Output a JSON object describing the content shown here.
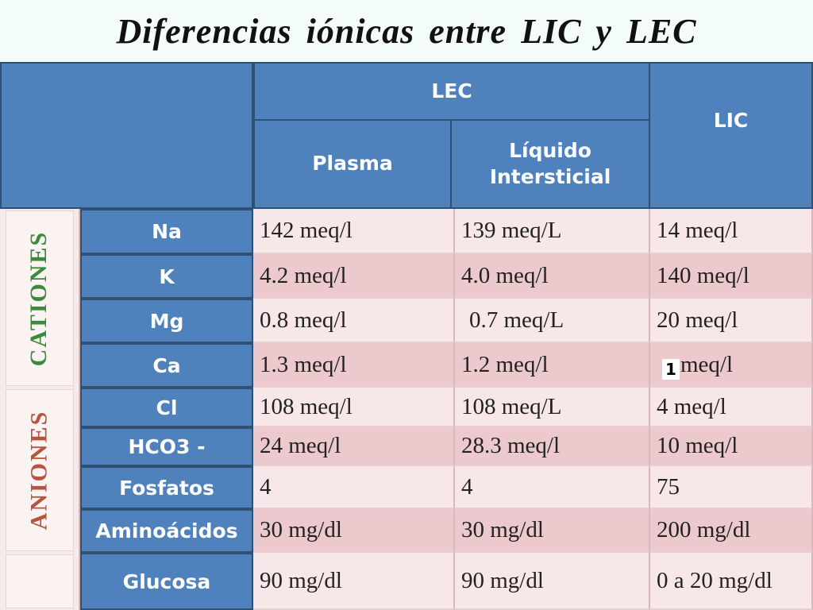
{
  "title": "Diferencias iónicas entre LIC y LEC",
  "headers": {
    "lec": "LEC",
    "plasma": "Plasma",
    "liquido": "Líquido Intersticial",
    "lic": "LIC"
  },
  "groups": {
    "cations": "CATIONES",
    "anions": "ANIONES"
  },
  "rows": [
    {
      "label": "Na",
      "plasma": "142 meq/l",
      "intersticial": "139 meq/L",
      "lic": "14 meq/l"
    },
    {
      "label": "K",
      "plasma": "4.2 meq/l",
      "intersticial": "4.0 meq/l",
      "lic": "140 meq/l"
    },
    {
      "label": "Mg",
      "plasma": "0.8 meq/l",
      "intersticial": "0.7 meq/L",
      "lic": "20 meq/l"
    },
    {
      "label": "Ca",
      "plasma": "1.3 meq/l",
      "intersticial": "1.2 meq/l",
      "lic": "meq/l"
    },
    {
      "label": "Cl",
      "plasma": "108 meq/l",
      "intersticial": "108 meq/L",
      "lic": "4 meq/l"
    },
    {
      "label": "HCO3 -",
      "plasma": "24 meq/l",
      "intersticial": "28.3 meq/l",
      "lic": "10 meq/l"
    },
    {
      "label": "Fosfatos",
      "plasma": "4",
      "intersticial": "4",
      "lic": "75"
    },
    {
      "label": "Aminoácidos",
      "plasma": "30 mg/dl",
      "intersticial": "30 mg/dl",
      "lic": "200 mg/dl"
    },
    {
      "label": "Glucosa",
      "plasma": "90 mg/dl",
      "intersticial": "90 mg/dl",
      "lic": "0 a 20 mg/dl"
    }
  ],
  "footnote": "1",
  "colors": {
    "header_blue": "#4f81bd",
    "cell_light": "#f8e7e8",
    "cell_dark": "#ecc9cc",
    "cations_green": "#3b8a3b",
    "anions_red": "#b5543f"
  }
}
